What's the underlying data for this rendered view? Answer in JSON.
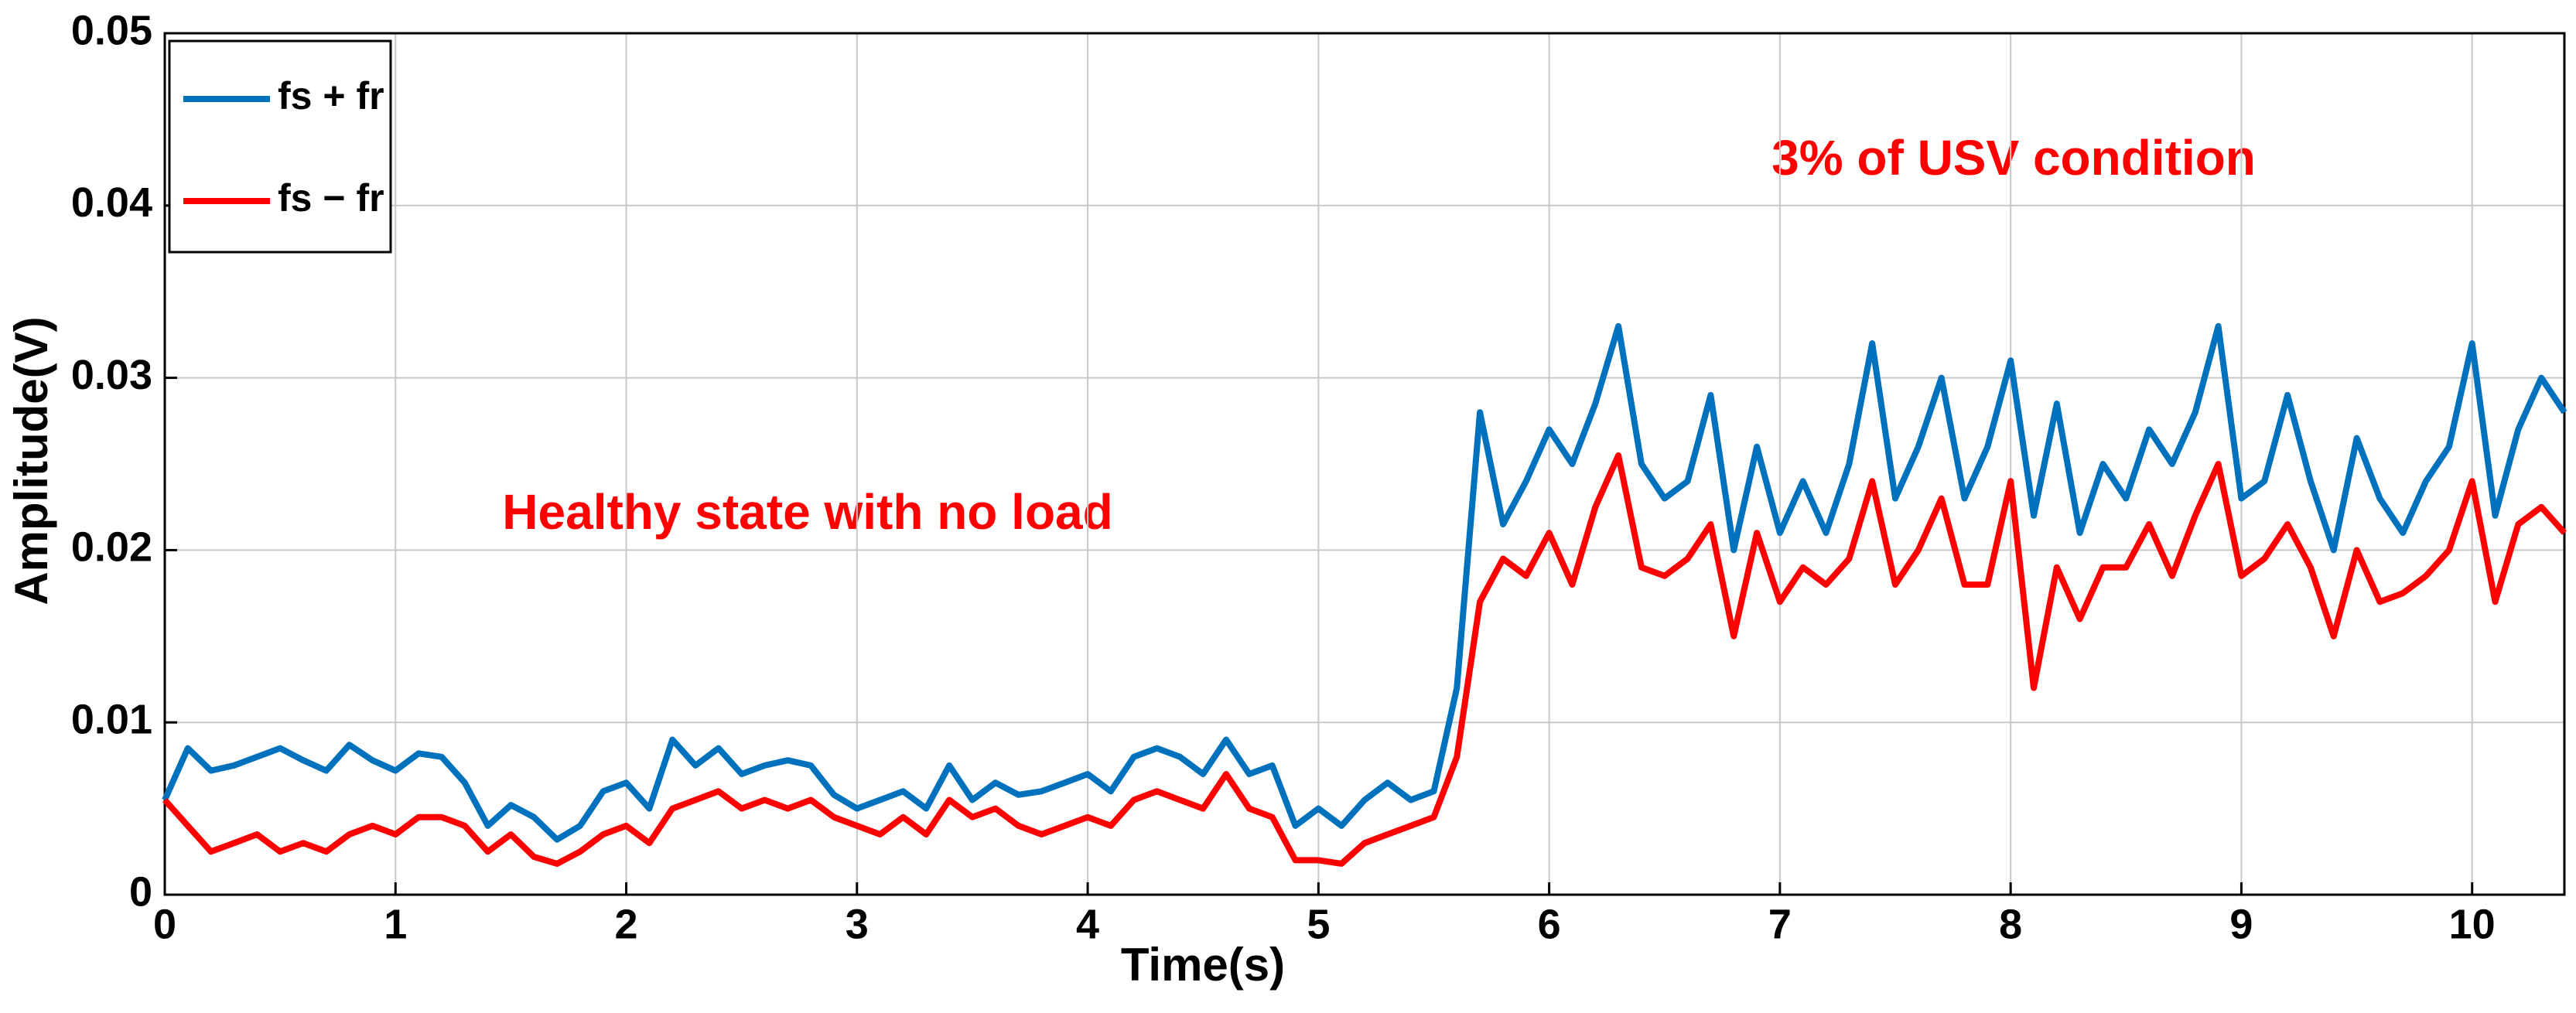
{
  "chart_data": {
    "type": "line",
    "xlabel": "Time(s)",
    "ylabel": "Amplitude(V)",
    "annotations": [
      "Healthy state with no load",
      "3% of USV condition"
    ],
    "x": [
      0.0,
      0.1,
      0.2,
      0.3,
      0.4,
      0.5,
      0.6,
      0.7,
      0.8,
      0.9,
      1.0,
      1.1,
      1.2,
      1.3,
      1.4,
      1.5,
      1.6,
      1.7,
      1.8,
      1.9,
      2.0,
      2.1,
      2.2,
      2.3,
      2.4,
      2.5,
      2.6,
      2.7,
      2.8,
      2.9,
      3.0,
      3.1,
      3.2,
      3.3,
      3.4,
      3.5,
      3.6,
      3.7,
      3.8,
      3.9,
      4.0,
      4.1,
      4.2,
      4.3,
      4.4,
      4.5,
      4.6,
      4.7,
      4.8,
      4.9,
      5.0,
      5.1,
      5.2,
      5.3,
      5.4,
      5.5,
      5.6,
      5.7,
      5.8,
      5.9,
      6.0,
      6.1,
      6.2,
      6.3,
      6.4,
      6.5,
      6.6,
      6.7,
      6.8,
      6.9,
      7.0,
      7.1,
      7.2,
      7.3,
      7.4,
      7.5,
      7.6,
      7.7,
      7.8,
      7.9,
      8.0,
      8.1,
      8.2,
      8.3,
      8.4,
      8.5,
      8.6,
      8.7,
      8.8,
      8.9,
      9.0,
      9.1,
      9.2,
      9.3,
      9.4,
      9.5,
      9.6,
      9.7,
      9.8,
      9.9,
      10.0,
      10.1,
      10.2,
      10.3,
      10.4
    ],
    "series": [
      {
        "name": "fs + fr",
        "color": "#0072bd",
        "values": [
          0.0055,
          0.0085,
          0.0072,
          0.0075,
          0.008,
          0.0085,
          0.0078,
          0.0072,
          0.0087,
          0.0078,
          0.0072,
          0.0082,
          0.008,
          0.0065,
          0.004,
          0.0052,
          0.0045,
          0.0032,
          0.004,
          0.006,
          0.0065,
          0.005,
          0.009,
          0.0075,
          0.0085,
          0.007,
          0.0075,
          0.0078,
          0.0075,
          0.0058,
          0.005,
          0.0055,
          0.006,
          0.005,
          0.0075,
          0.0055,
          0.0065,
          0.0058,
          0.006,
          0.0065,
          0.007,
          0.006,
          0.008,
          0.0085,
          0.008,
          0.007,
          0.009,
          0.007,
          0.0075,
          0.004,
          0.005,
          0.004,
          0.0055,
          0.0065,
          0.0055,
          0.006,
          0.012,
          0.028,
          0.0215,
          0.024,
          0.027,
          0.025,
          0.0285,
          0.033,
          0.025,
          0.023,
          0.024,
          0.029,
          0.02,
          0.026,
          0.021,
          0.024,
          0.021,
          0.025,
          0.032,
          0.023,
          0.026,
          0.03,
          0.023,
          0.026,
          0.031,
          0.022,
          0.0285,
          0.021,
          0.025,
          0.023,
          0.027,
          0.025,
          0.028,
          0.033,
          0.023,
          0.024,
          0.029,
          0.024,
          0.02,
          0.0265,
          0.023,
          0.021,
          0.024,
          0.026,
          0.032,
          0.022,
          0.027,
          0.03,
          0.028
        ]
      },
      {
        "name": "fs − fr",
        "color": "#ff0000",
        "values": [
          0.0055,
          0.004,
          0.0025,
          0.003,
          0.0035,
          0.0025,
          0.003,
          0.0025,
          0.0035,
          0.004,
          0.0035,
          0.0045,
          0.0045,
          0.004,
          0.0025,
          0.0035,
          0.0022,
          0.0018,
          0.0025,
          0.0035,
          0.004,
          0.003,
          0.005,
          0.0055,
          0.006,
          0.005,
          0.0055,
          0.005,
          0.0055,
          0.0045,
          0.004,
          0.0035,
          0.0045,
          0.0035,
          0.0055,
          0.0045,
          0.005,
          0.004,
          0.0035,
          0.004,
          0.0045,
          0.004,
          0.0055,
          0.006,
          0.0055,
          0.005,
          0.007,
          0.005,
          0.0045,
          0.002,
          0.002,
          0.0018,
          0.003,
          0.0035,
          0.004,
          0.0045,
          0.008,
          0.017,
          0.0195,
          0.0185,
          0.021,
          0.018,
          0.0225,
          0.0255,
          0.019,
          0.0185,
          0.0195,
          0.0215,
          0.015,
          0.021,
          0.017,
          0.019,
          0.018,
          0.0195,
          0.024,
          0.018,
          0.02,
          0.023,
          0.018,
          0.018,
          0.024,
          0.012,
          0.019,
          0.016,
          0.019,
          0.019,
          0.0215,
          0.0185,
          0.022,
          0.025,
          0.0185,
          0.0195,
          0.0215,
          0.019,
          0.015,
          0.02,
          0.017,
          0.0175,
          0.0185,
          0.02,
          0.024,
          0.017,
          0.0215,
          0.0225,
          0.021
        ]
      }
    ],
    "xlim": [
      0,
      10.4
    ],
    "xticks": [
      0,
      1,
      2,
      3,
      4,
      5,
      6,
      7,
      8,
      9,
      10
    ],
    "ylim": [
      0,
      0.05
    ],
    "yticks": [
      0,
      0.01,
      0.02,
      0.03,
      0.04,
      0.05
    ],
    "grid": true,
    "legend": "upper left"
  }
}
